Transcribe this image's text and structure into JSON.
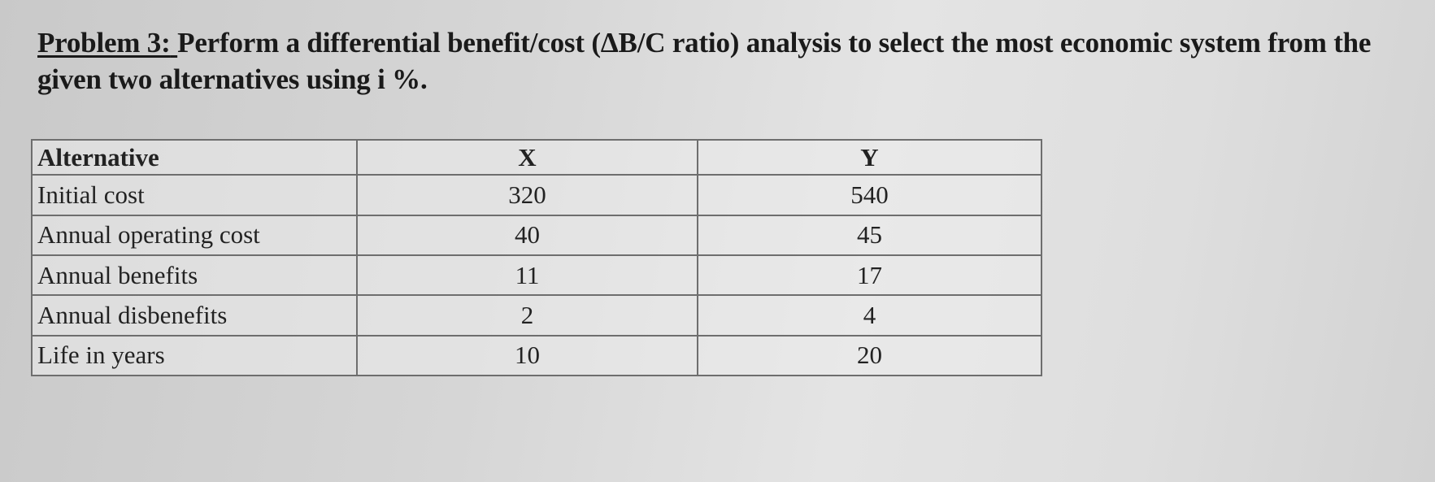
{
  "problem": {
    "label": "Problem 3:",
    "text": "Perform a differential benefit/cost (ΔB/C ratio) analysis to select the most economic system from the given two alternatives using i %."
  },
  "table": {
    "header": [
      "Alternative",
      "X",
      "Y"
    ],
    "rows": [
      [
        "Initial cost",
        "320",
        "540"
      ],
      [
        "Annual operating cost",
        "40",
        "45"
      ],
      [
        "Annual benefits",
        "11",
        "17"
      ],
      [
        "Annual disbenefits",
        "2",
        "4"
      ],
      [
        "Life in years",
        "10",
        "20"
      ]
    ]
  }
}
